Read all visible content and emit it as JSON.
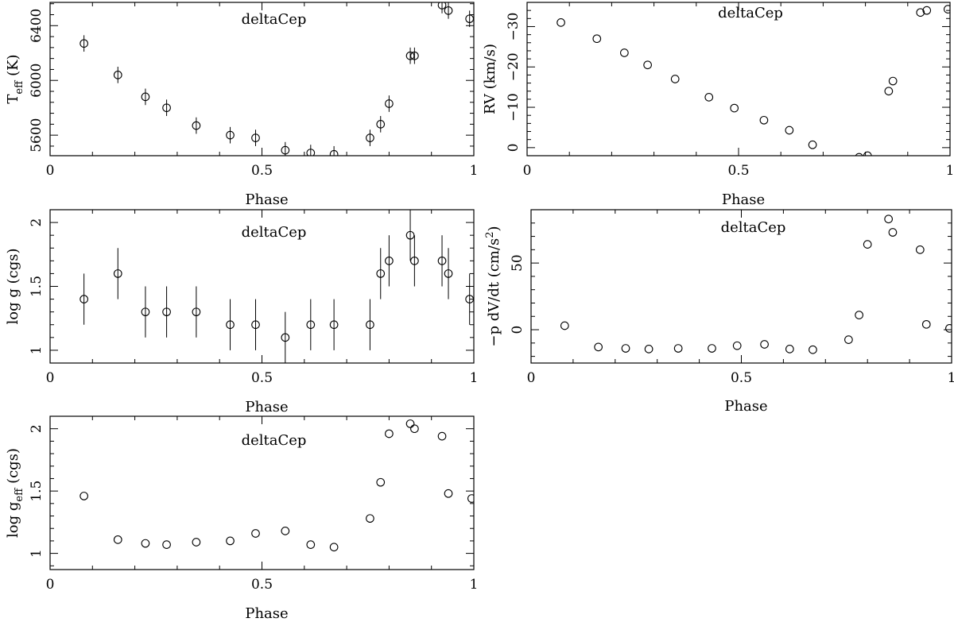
{
  "chart_data": [
    {
      "id": "teff",
      "type": "scatter",
      "label": "deltaCep",
      "xlabel": "Phase",
      "ylabel": "T",
      "ylabel_sub": "eff",
      "ylabel_suffix": " (K)",
      "xlim": [
        0,
        1
      ],
      "ylim": [
        5450,
        6570
      ],
      "y_inverted": false,
      "xticks": [
        {
          "v": 0,
          "t": "0"
        },
        {
          "v": 0.5,
          "t": "0.5"
        },
        {
          "v": 1,
          "t": "1"
        }
      ],
      "yticks": [
        {
          "v": 5600,
          "t": "5600"
        },
        {
          "v": 6000,
          "t": "6000"
        },
        {
          "v": 6400,
          "t": "6400"
        }
      ],
      "x": [
        0.08,
        0.16,
        0.225,
        0.275,
        0.345,
        0.425,
        0.485,
        0.555,
        0.615,
        0.67,
        0.755,
        0.78,
        0.8,
        0.85,
        0.86,
        0.925,
        0.94,
        0.99
      ],
      "y": [
        6270,
        6040,
        5880,
        5800,
        5670,
        5600,
        5580,
        5490,
        5470,
        5460,
        5580,
        5680,
        5830,
        6180,
        6180,
        6550,
        6510,
        6450
      ],
      "yerr": [
        60,
        60,
        60,
        60,
        60,
        60,
        60,
        60,
        60,
        60,
        60,
        60,
        60,
        60,
        60,
        60,
        60,
        60
      ]
    },
    {
      "id": "rv",
      "type": "scatter",
      "label": "deltaCep",
      "xlabel": "Phase",
      "ylabel": "RV (km/s)",
      "xlim": [
        0,
        1
      ],
      "ylim": [
        -36,
        2
      ],
      "y_inverted": true,
      "xticks": [
        {
          "v": 0,
          "t": "0"
        },
        {
          "v": 0.5,
          "t": "0.5"
        },
        {
          "v": 1,
          "t": "1"
        }
      ],
      "yticks": [
        {
          "v": 0,
          "t": "0"
        },
        {
          "v": -10,
          "t": "−10"
        },
        {
          "v": -20,
          "t": "−20"
        },
        {
          "v": -30,
          "t": "−30"
        }
      ],
      "x": [
        0.08,
        0.165,
        0.23,
        0.285,
        0.35,
        0.43,
        0.49,
        0.56,
        0.62,
        0.675,
        0.76,
        0.785,
        0.805,
        0.855,
        0.865,
        0.93,
        0.945,
        0.995
      ],
      "y": [
        -31,
        -27,
        -23.5,
        -20.5,
        -17,
        -12.5,
        -9.8,
        -6.8,
        -4.3,
        -0.7,
        3.4,
        2.4,
        2.0,
        -14,
        -16.5,
        -33.5,
        -34,
        -34.3
      ]
    },
    {
      "id": "logg",
      "type": "scatter",
      "label": "deltaCep",
      "xlabel": "Phase",
      "ylabel": "log g (cgs)",
      "xlim": [
        0,
        1
      ],
      "ylim": [
        0.9,
        2.1
      ],
      "y_inverted": false,
      "xticks": [
        {
          "v": 0,
          "t": "0"
        },
        {
          "v": 0.5,
          "t": "0.5"
        },
        {
          "v": 1,
          "t": "1"
        }
      ],
      "yticks": [
        {
          "v": 1,
          "t": "1"
        },
        {
          "v": 1.5,
          "t": "1.5"
        },
        {
          "v": 2,
          "t": "2"
        }
      ],
      "x": [
        0.08,
        0.16,
        0.225,
        0.275,
        0.345,
        0.425,
        0.485,
        0.555,
        0.615,
        0.67,
        0.755,
        0.78,
        0.8,
        0.85,
        0.86,
        0.925,
        0.94,
        0.99
      ],
      "y": [
        1.4,
        1.6,
        1.3,
        1.3,
        1.3,
        1.2,
        1.2,
        1.1,
        1.2,
        1.2,
        1.2,
        1.6,
        1.7,
        1.9,
        1.7,
        1.7,
        1.6,
        1.4
      ],
      "yerr": [
        0.2,
        0.2,
        0.2,
        0.2,
        0.2,
        0.2,
        0.2,
        0.2,
        0.2,
        0.2,
        0.2,
        0.2,
        0.2,
        0.2,
        0.2,
        0.2,
        0.2,
        0.2
      ]
    },
    {
      "id": "accel",
      "type": "scatter",
      "label": "deltaCep",
      "xlabel": "Phase",
      "ylabel": "−p dV/dt (cm/s",
      "ylabel_sup": "2",
      "ylabel_suffix": ")",
      "xlim": [
        0,
        1
      ],
      "ylim": [
        -25,
        90
      ],
      "y_inverted": false,
      "xticks": [
        {
          "v": 0,
          "t": "0"
        },
        {
          "v": 0.5,
          "t": "0.5"
        },
        {
          "v": 1,
          "t": "1"
        }
      ],
      "yticks": [
        {
          "v": 0,
          "t": "0"
        },
        {
          "v": 50,
          "t": "50"
        }
      ],
      "x": [
        0.08,
        0.16,
        0.225,
        0.28,
        0.35,
        0.43,
        0.49,
        0.555,
        0.615,
        0.67,
        0.755,
        0.78,
        0.8,
        0.85,
        0.86,
        0.925,
        0.94,
        0.995
      ],
      "y": [
        3,
        -13,
        -14,
        -14.5,
        -14,
        -14,
        -12,
        -11,
        -14.5,
        -15,
        -7.5,
        11,
        64,
        83,
        73,
        60,
        4,
        1
      ]
    },
    {
      "id": "logg_eff",
      "type": "scatter",
      "label": "deltaCep",
      "xlabel": "Phase",
      "ylabel": "log g",
      "ylabel_sub": "eff",
      "ylabel_suffix": " (cgs)",
      "xlim": [
        0,
        1
      ],
      "ylim": [
        0.87,
        2.1
      ],
      "y_inverted": false,
      "xticks": [
        {
          "v": 0,
          "t": "0"
        },
        {
          "v": 0.5,
          "t": "0.5"
        },
        {
          "v": 1,
          "t": "1"
        }
      ],
      "yticks": [
        {
          "v": 1,
          "t": "1"
        },
        {
          "v": 1.5,
          "t": "1.5"
        },
        {
          "v": 2,
          "t": "2"
        }
      ],
      "x": [
        0.08,
        0.16,
        0.225,
        0.275,
        0.345,
        0.425,
        0.485,
        0.555,
        0.615,
        0.67,
        0.755,
        0.78,
        0.8,
        0.85,
        0.86,
        0.925,
        0.94,
        0.995
      ],
      "y": [
        1.46,
        1.11,
        1.08,
        1.07,
        1.09,
        1.1,
        1.16,
        1.18,
        1.07,
        1.05,
        1.28,
        1.57,
        1.96,
        2.04,
        2.0,
        1.94,
        1.48,
        1.44
      ]
    }
  ]
}
